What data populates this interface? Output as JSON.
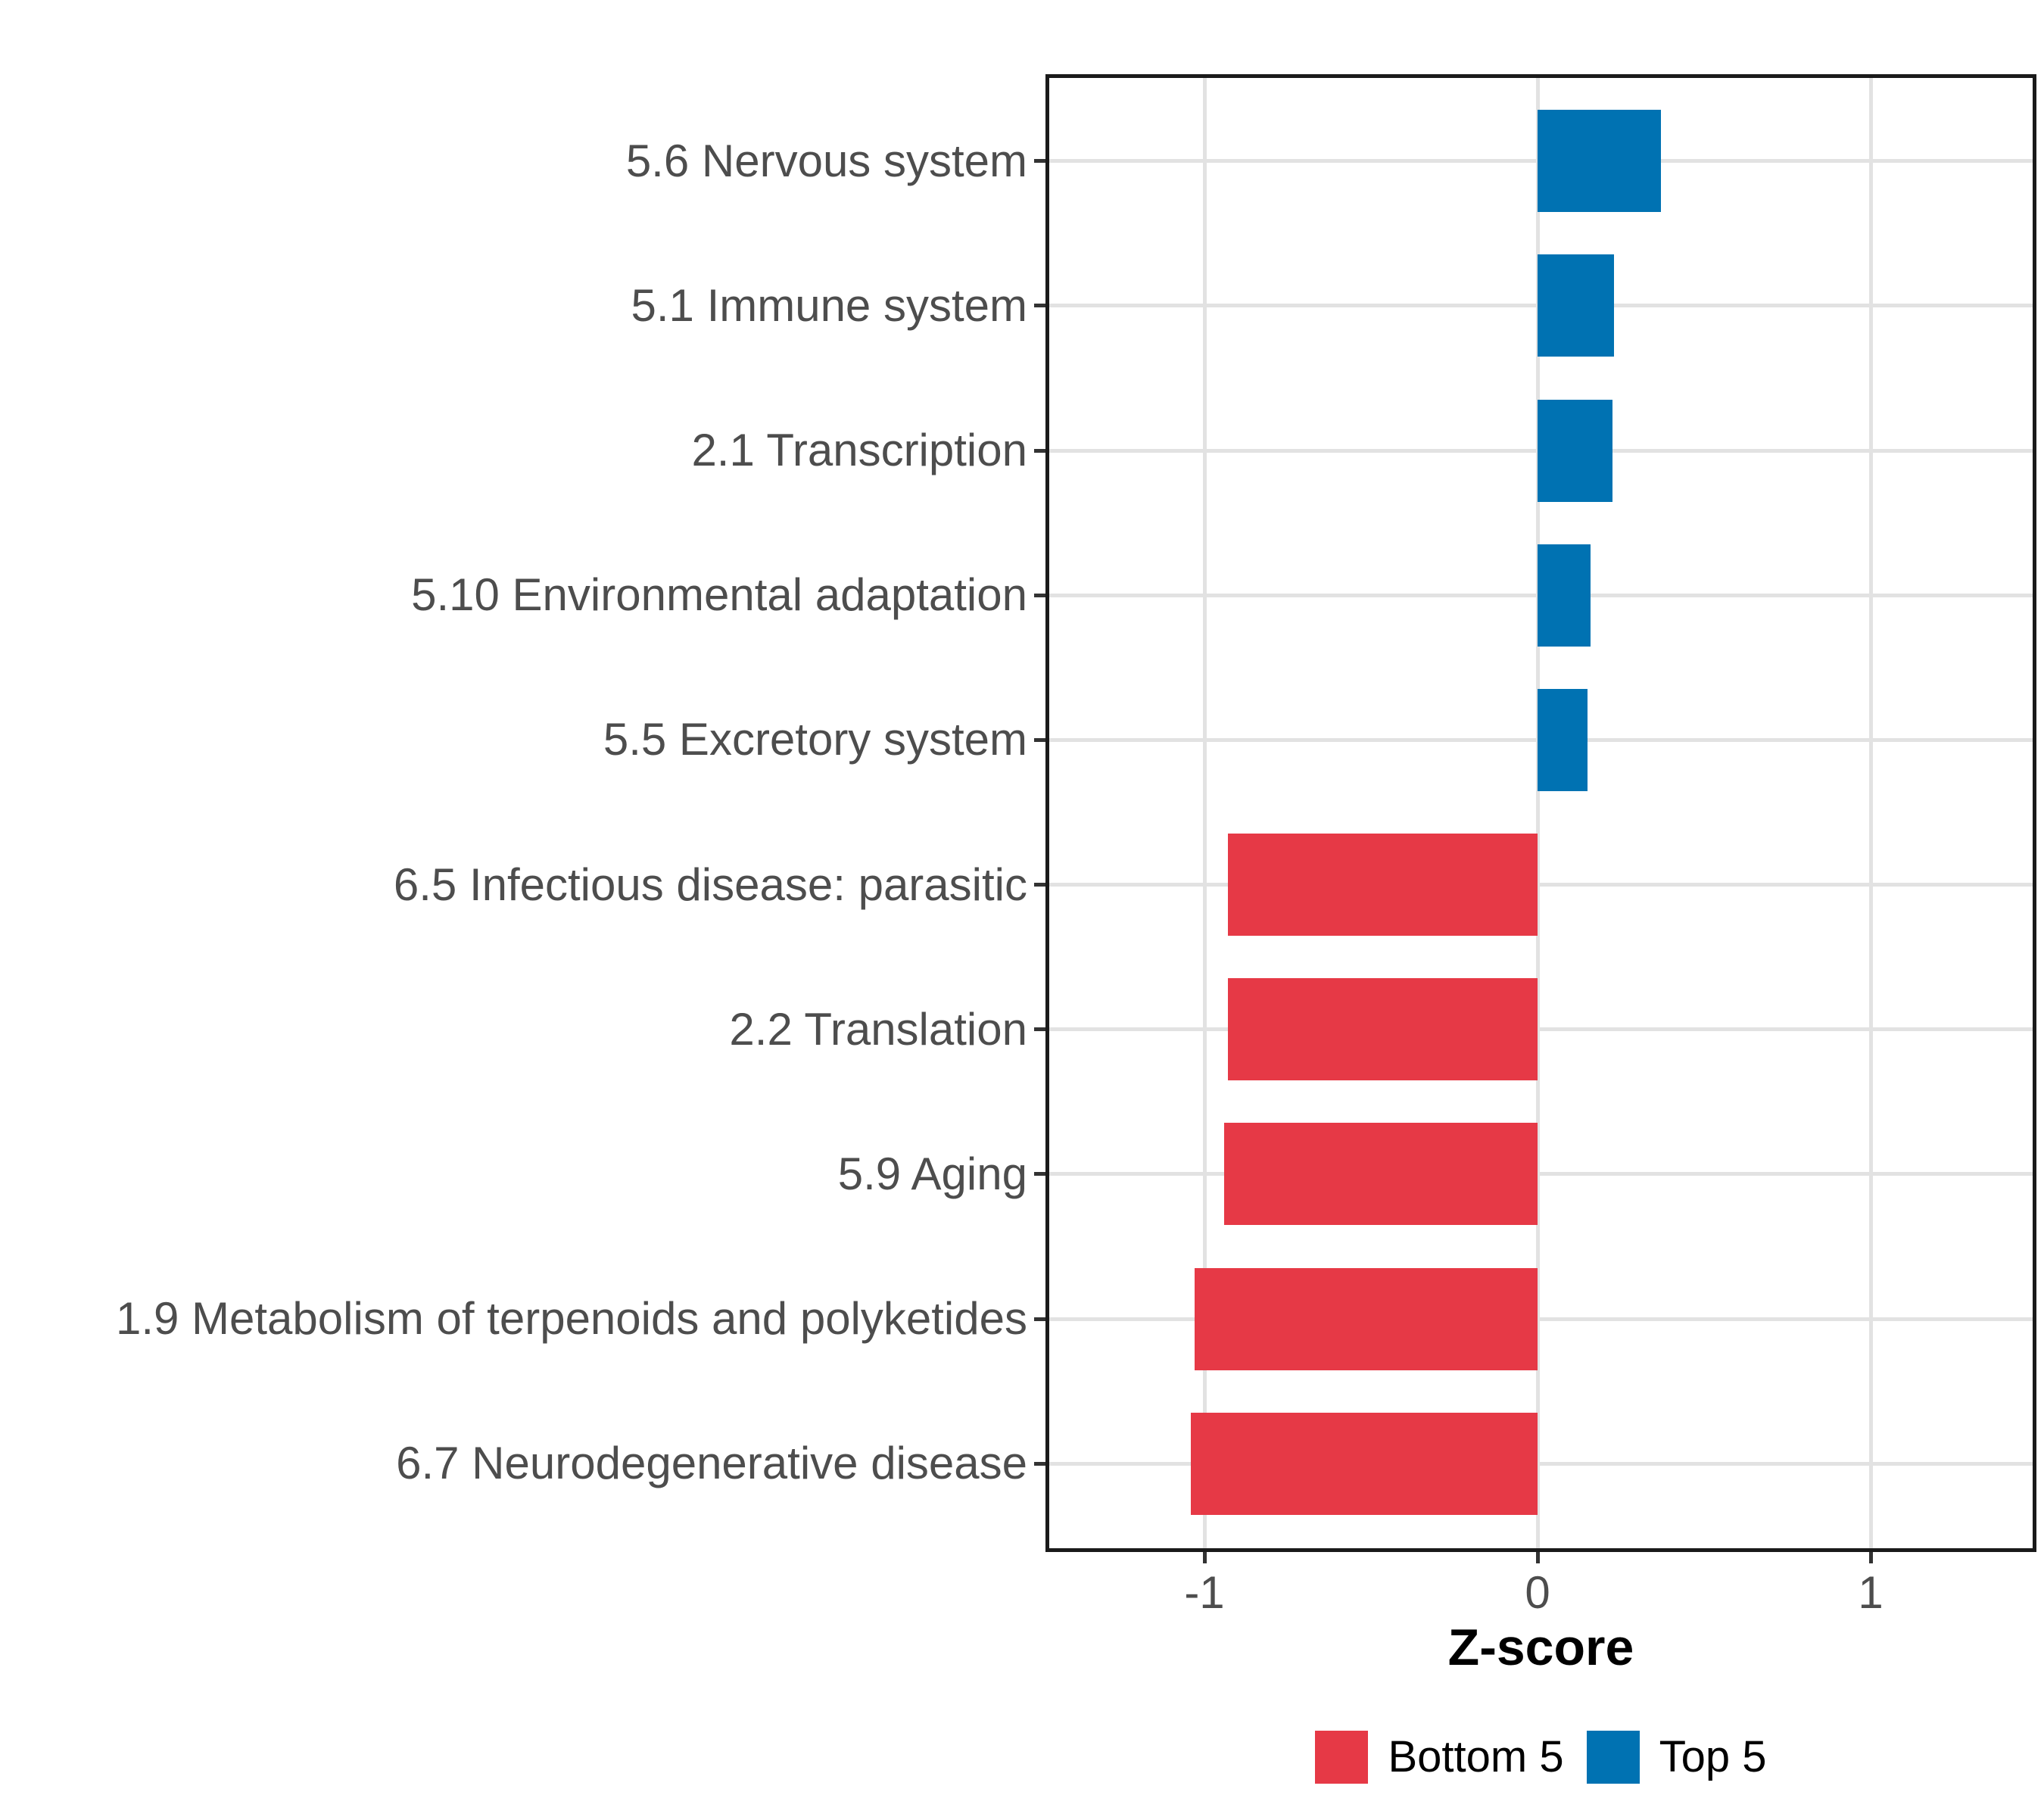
{
  "chart_data": {
    "type": "bar",
    "orientation": "horizontal",
    "title": "",
    "xlabel": "Z-score",
    "ylabel": "",
    "categories": [
      "5.6 Nervous system",
      "5.1 Immune system",
      "2.1 Transcription",
      "5.10 Environmental adaptation",
      "5.5 Excretory system",
      "6.5 Infectious disease: parasitic",
      "2.2 Translation",
      "5.9 Aging",
      "1.9 Metabolism of terpenoids and polyketides",
      "6.7 Neurodegenerative disease"
    ],
    "values": [
      0.37,
      0.23,
      0.225,
      0.16,
      0.15,
      -0.93,
      -0.93,
      -0.94,
      -1.03,
      -1.04
    ],
    "groups": [
      "Top 5",
      "Top 5",
      "Top 5",
      "Top 5",
      "Top 5",
      "Bottom 5",
      "Bottom 5",
      "Bottom 5",
      "Bottom 5",
      "Bottom 5"
    ],
    "group_colors": {
      "Bottom 5": "#E63946",
      "Top 5": "#0072B2"
    },
    "xlim": [
      -1.48,
      1.5
    ],
    "xticks": [
      -1,
      0,
      1
    ],
    "xtick_labels": [
      "-1",
      "0",
      "1"
    ],
    "grid": "major",
    "legend_position": "bottom",
    "legend": [
      {
        "label": "Bottom 5",
        "color": "#E63946"
      },
      {
        "label": "Top 5",
        "color": "#0072B2"
      }
    ]
  }
}
